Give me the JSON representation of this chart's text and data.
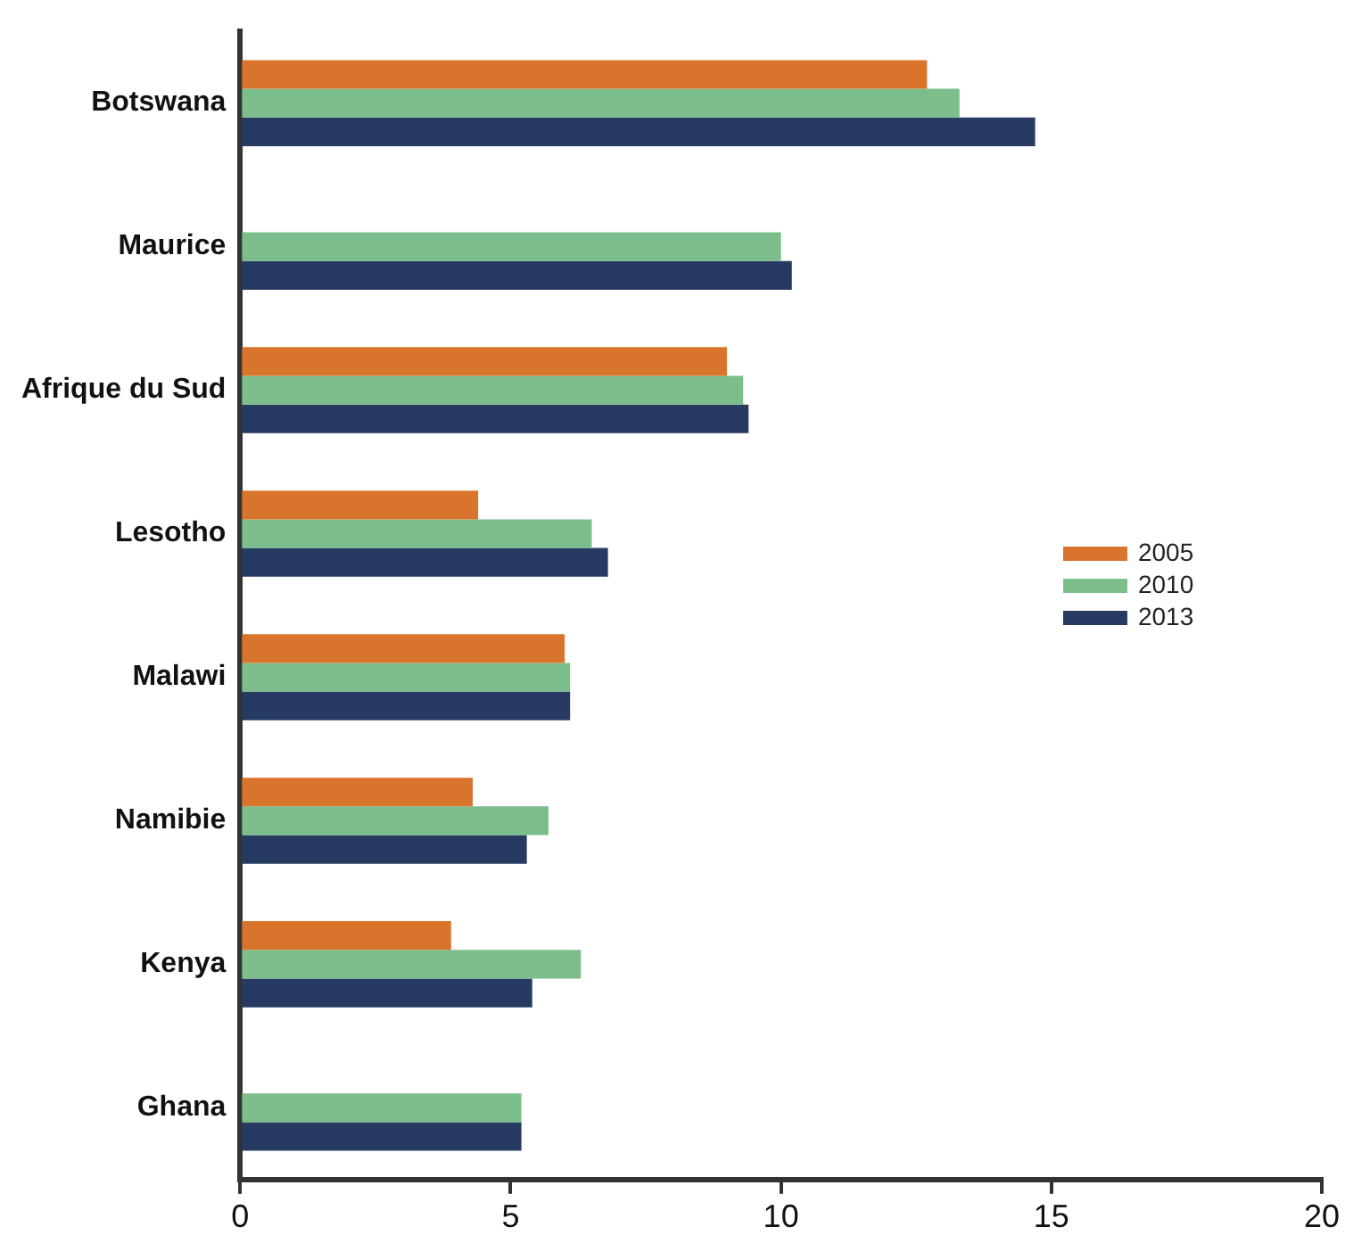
{
  "chart_data": {
    "type": "bar",
    "orientation": "horizontal",
    "categories": [
      "Botswana",
      "Maurice",
      "Afrique du Sud",
      "Lesotho",
      "Malawi",
      "Namibie",
      "Kenya",
      "Ghana"
    ],
    "series": [
      {
        "name": "2005",
        "color": "#d9742d",
        "values": [
          12.7,
          null,
          9.0,
          4.4,
          6.0,
          4.3,
          3.9,
          null
        ]
      },
      {
        "name": "2010",
        "color": "#7bbe8b",
        "values": [
          13.3,
          10.0,
          9.3,
          6.5,
          6.1,
          5.7,
          6.3,
          5.2
        ]
      },
      {
        "name": "2013",
        "color": "#273b62",
        "values": [
          14.7,
          10.2,
          9.4,
          6.8,
          6.1,
          5.3,
          5.4,
          5.2
        ]
      }
    ],
    "xlim": [
      0,
      20
    ],
    "xticks": [
      0,
      5,
      10,
      15,
      20
    ],
    "grid": false,
    "legend": "right"
  }
}
